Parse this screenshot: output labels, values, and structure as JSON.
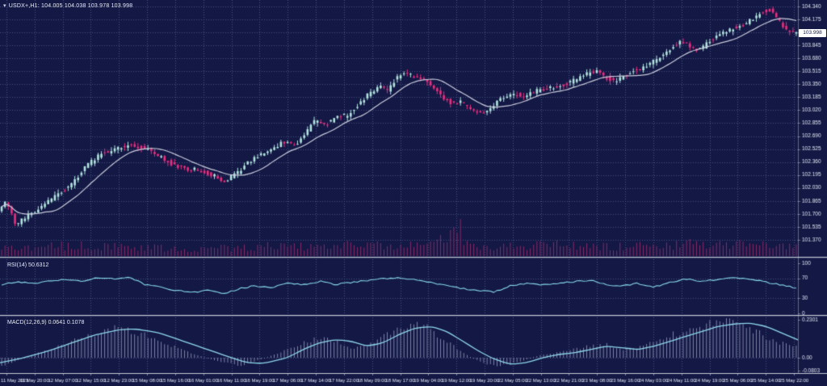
{
  "window": {
    "title": "USDX+,H1: 104.005 104.038 103.978 103.998"
  },
  "icons": {
    "collapse_arrow": "▾"
  },
  "colors": {
    "background": "#131845",
    "grid": "#4f5b8c",
    "bull_candle": "#b2e4de",
    "bear_candle": "#ea2e7e",
    "moving_average": "#c9cad9",
    "volume": "#8c2a66",
    "rsi_line": "#86d7e9",
    "macd_line": "#8fd8ea",
    "macd_histogram": "#b9bedd",
    "axis_text": "#dfe3ee",
    "separator": "#c6cad6",
    "separator_shadow": "#3a4067",
    "tag_background": "#ffffff",
    "tag_text": "#131845"
  },
  "price_axis": {
    "labels": [
      "104.340",
      "104.175",
      "104.010",
      "103.845",
      "103.680",
      "103.515",
      "103.350",
      "103.185",
      "103.020",
      "102.855",
      "102.690",
      "102.525",
      "102.360",
      "102.195",
      "102.030",
      "101.865",
      "101.700",
      "101.535",
      "101.370"
    ],
    "current_price": "103.998"
  },
  "time_axis": {
    "labels": [
      "11 May 2023",
      "11 May 20:00",
      "12 May 07:00",
      "12 May 15:00",
      "12 May 23:00",
      "15 May 08:00",
      "15 May 16:00",
      "16 May 01:00",
      "16 May 11:00",
      "16 May 19:00",
      "17 May 06:00",
      "17 May 14:00",
      "17 May 22:00",
      "18 May 09:00",
      "18 May 17:00",
      "19 May 04:00",
      "19 May 12:00",
      "19 May 20:00",
      "22 May 05:00",
      "22 May 13:00",
      "22 May 21:00",
      "23 May 08:00",
      "23 May 16:00",
      "24 May 03:00",
      "24 May 11:00",
      "24 May 19:00",
      "25 May 06:00",
      "25 May 14:00",
      "25 May 22:00"
    ]
  },
  "panes": {
    "rsi": {
      "label": "RSI(14) 50.6312",
      "scale": [
        "100",
        "70",
        "30",
        "0"
      ]
    },
    "macd": {
      "label": "MACD(12,26,9) 0.0641 0.1078",
      "scale": [
        "0.2301",
        "0.00",
        "-0.0803"
      ]
    }
  },
  "chart_data": [
    {
      "type": "candlestick",
      "name": "USDX+ H1 price with moving average and tick volume",
      "ohlc_last": {
        "open": 104.005,
        "high": 104.038,
        "low": 103.978,
        "close": 103.998
      },
      "y_range": [
        101.37,
        104.34
      ],
      "grid": true,
      "candle_count": 240,
      "close_path": [
        [
          0,
          101.72
        ],
        [
          0.01,
          101.88
        ],
        [
          0.022,
          101.56
        ],
        [
          0.035,
          101.66
        ],
        [
          0.055,
          101.8
        ],
        [
          0.075,
          101.95
        ],
        [
          0.09,
          102.05
        ],
        [
          0.11,
          102.3
        ],
        [
          0.127,
          102.45
        ],
        [
          0.145,
          102.52
        ],
        [
          0.163,
          102.58
        ],
        [
          0.18,
          102.55
        ],
        [
          0.198,
          102.46
        ],
        [
          0.215,
          102.35
        ],
        [
          0.233,
          102.28
        ],
        [
          0.25,
          102.26
        ],
        [
          0.268,
          102.2
        ],
        [
          0.285,
          102.12
        ],
        [
          0.3,
          102.22
        ],
        [
          0.32,
          102.4
        ],
        [
          0.34,
          102.5
        ],
        [
          0.36,
          102.62
        ],
        [
          0.375,
          102.56
        ],
        [
          0.39,
          102.78
        ],
        [
          0.4,
          102.9
        ],
        [
          0.412,
          102.84
        ],
        [
          0.425,
          102.92
        ],
        [
          0.44,
          102.96
        ],
        [
          0.455,
          103.1
        ],
        [
          0.468,
          103.25
        ],
        [
          0.48,
          103.32
        ],
        [
          0.49,
          103.26
        ],
        [
          0.5,
          103.42
        ],
        [
          0.51,
          103.5
        ],
        [
          0.52,
          103.46
        ],
        [
          0.532,
          103.42
        ],
        [
          0.545,
          103.34
        ],
        [
          0.558,
          103.2
        ],
        [
          0.57,
          103.1
        ],
        [
          0.582,
          103.12
        ],
        [
          0.595,
          103.04
        ],
        [
          0.608,
          102.98
        ],
        [
          0.62,
          103.06
        ],
        [
          0.635,
          103.18
        ],
        [
          0.65,
          103.22
        ],
        [
          0.665,
          103.2
        ],
        [
          0.68,
          103.28
        ],
        [
          0.695,
          103.3
        ],
        [
          0.71,
          103.33
        ],
        [
          0.725,
          103.4
        ],
        [
          0.74,
          103.48
        ],
        [
          0.752,
          103.52
        ],
        [
          0.762,
          103.45
        ],
        [
          0.775,
          103.38
        ],
        [
          0.788,
          103.46
        ],
        [
          0.8,
          103.52
        ],
        [
          0.815,
          103.58
        ],
        [
          0.83,
          103.68
        ],
        [
          0.845,
          103.8
        ],
        [
          0.858,
          103.88
        ],
        [
          0.87,
          103.84
        ],
        [
          0.882,
          103.78
        ],
        [
          0.893,
          103.88
        ],
        [
          0.905,
          103.96
        ],
        [
          0.916,
          104.02
        ],
        [
          0.928,
          104.08
        ],
        [
          0.94,
          104.12
        ],
        [
          0.952,
          104.2
        ],
        [
          0.962,
          104.28
        ],
        [
          0.972,
          104.3
        ],
        [
          0.982,
          104.16
        ],
        [
          0.992,
          104.03
        ],
        [
          1,
          103.998
        ]
      ],
      "volume_profile": [
        [
          0,
          0.22
        ],
        [
          0.05,
          0.3
        ],
        [
          0.1,
          0.33
        ],
        [
          0.15,
          0.28
        ],
        [
          0.2,
          0.26
        ],
        [
          0.25,
          0.2
        ],
        [
          0.3,
          0.28
        ],
        [
          0.35,
          0.33
        ],
        [
          0.4,
          0.3
        ],
        [
          0.45,
          0.34
        ],
        [
          0.5,
          0.3
        ],
        [
          0.55,
          0.4
        ],
        [
          0.572,
          1.1
        ],
        [
          0.585,
          0.4
        ],
        [
          0.62,
          0.28
        ],
        [
          0.65,
          0.3
        ],
        [
          0.7,
          0.34
        ],
        [
          0.75,
          0.3
        ],
        [
          0.8,
          0.3
        ],
        [
          0.85,
          0.36
        ],
        [
          0.9,
          0.4
        ],
        [
          0.95,
          0.34
        ],
        [
          1,
          0.28
        ]
      ]
    },
    {
      "type": "line",
      "name": "RSI(14)",
      "last_value": 50.6312,
      "y_range": [
        0,
        100
      ],
      "levels": [
        70,
        30
      ],
      "points": [
        [
          0,
          58
        ],
        [
          0.02,
          62
        ],
        [
          0.04,
          60
        ],
        [
          0.06,
          65
        ],
        [
          0.08,
          67
        ],
        [
          0.1,
          64
        ],
        [
          0.12,
          71
        ],
        [
          0.14,
          69
        ],
        [
          0.16,
          72
        ],
        [
          0.18,
          58
        ],
        [
          0.2,
          52
        ],
        [
          0.22,
          46
        ],
        [
          0.24,
          42
        ],
        [
          0.26,
          46
        ],
        [
          0.28,
          39
        ],
        [
          0.3,
          50
        ],
        [
          0.32,
          55
        ],
        [
          0.34,
          52
        ],
        [
          0.36,
          60
        ],
        [
          0.38,
          57
        ],
        [
          0.4,
          64
        ],
        [
          0.42,
          58
        ],
        [
          0.44,
          61
        ],
        [
          0.46,
          66
        ],
        [
          0.48,
          69
        ],
        [
          0.5,
          72
        ],
        [
          0.52,
          67
        ],
        [
          0.54,
          62
        ],
        [
          0.56,
          55
        ],
        [
          0.58,
          49
        ],
        [
          0.6,
          46
        ],
        [
          0.62,
          43
        ],
        [
          0.64,
          55
        ],
        [
          0.66,
          60
        ],
        [
          0.68,
          57
        ],
        [
          0.7,
          60
        ],
        [
          0.72,
          63
        ],
        [
          0.74,
          66
        ],
        [
          0.76,
          58
        ],
        [
          0.78,
          54
        ],
        [
          0.8,
          60
        ],
        [
          0.82,
          52
        ],
        [
          0.84,
          61
        ],
        [
          0.86,
          69
        ],
        [
          0.88,
          64
        ],
        [
          0.9,
          67
        ],
        [
          0.92,
          71
        ],
        [
          0.94,
          69
        ],
        [
          0.96,
          63
        ],
        [
          0.98,
          57
        ],
        [
          1,
          50.6
        ]
      ]
    },
    {
      "type": "macd",
      "name": "MACD(12,26,9)",
      "values": {
        "macd": 0.0641,
        "signal": 0.1078
      },
      "y_range": [
        -0.0803,
        0.2301
      ],
      "signal_points": [
        [
          0,
          -0.03
        ],
        [
          0.03,
          0.0
        ],
        [
          0.06,
          0.04
        ],
        [
          0.09,
          0.09
        ],
        [
          0.12,
          0.14
        ],
        [
          0.15,
          0.17
        ],
        [
          0.17,
          0.175
        ],
        [
          0.2,
          0.15
        ],
        [
          0.23,
          0.1
        ],
        [
          0.26,
          0.05
        ],
        [
          0.29,
          0.0
        ],
        [
          0.31,
          -0.03
        ],
        [
          0.33,
          -0.035
        ],
        [
          0.36,
          0.0
        ],
        [
          0.38,
          0.05
        ],
        [
          0.4,
          0.09
        ],
        [
          0.42,
          0.11
        ],
        [
          0.44,
          0.1
        ],
        [
          0.46,
          0.07
        ],
        [
          0.48,
          0.09
        ],
        [
          0.5,
          0.14
        ],
        [
          0.52,
          0.18
        ],
        [
          0.54,
          0.19
        ],
        [
          0.56,
          0.16
        ],
        [
          0.58,
          0.1
        ],
        [
          0.6,
          0.04
        ],
        [
          0.62,
          -0.01
        ],
        [
          0.64,
          -0.04
        ],
        [
          0.66,
          -0.03
        ],
        [
          0.68,
          0.0
        ],
        [
          0.7,
          0.02
        ],
        [
          0.72,
          0.03
        ],
        [
          0.74,
          0.05
        ],
        [
          0.76,
          0.07
        ],
        [
          0.78,
          0.06
        ],
        [
          0.8,
          0.05
        ],
        [
          0.82,
          0.07
        ],
        [
          0.84,
          0.1
        ],
        [
          0.86,
          0.13
        ],
        [
          0.88,
          0.16
        ],
        [
          0.9,
          0.19
        ],
        [
          0.92,
          0.205
        ],
        [
          0.94,
          0.21
        ],
        [
          0.96,
          0.19
        ],
        [
          0.98,
          0.15
        ],
        [
          1,
          0.108
        ]
      ],
      "histogram_points": [
        [
          0,
          -0.05
        ],
        [
          0.04,
          0.02
        ],
        [
          0.08,
          0.08
        ],
        [
          0.11,
          0.14
        ],
        [
          0.14,
          0.18
        ],
        [
          0.16,
          0.17
        ],
        [
          0.19,
          0.12
        ],
        [
          0.22,
          0.06
        ],
        [
          0.25,
          0.01
        ],
        [
          0.28,
          -0.03
        ],
        [
          0.3,
          -0.05
        ],
        [
          0.32,
          -0.02
        ],
        [
          0.35,
          0.03
        ],
        [
          0.38,
          0.09
        ],
        [
          0.4,
          0.12
        ],
        [
          0.42,
          0.1
        ],
        [
          0.44,
          0.06
        ],
        [
          0.46,
          0.08
        ],
        [
          0.48,
          0.13
        ],
        [
          0.5,
          0.18
        ],
        [
          0.52,
          0.21
        ],
        [
          0.54,
          0.17
        ],
        [
          0.56,
          0.1
        ],
        [
          0.58,
          0.03
        ],
        [
          0.6,
          -0.02
        ],
        [
          0.62,
          -0.05
        ],
        [
          0.64,
          -0.04
        ],
        [
          0.66,
          -0.01
        ],
        [
          0.68,
          0.02
        ],
        [
          0.7,
          0.03
        ],
        [
          0.72,
          0.05
        ],
        [
          0.74,
          0.07
        ],
        [
          0.76,
          0.08
        ],
        [
          0.78,
          0.05
        ],
        [
          0.8,
          0.06
        ],
        [
          0.82,
          0.09
        ],
        [
          0.84,
          0.13
        ],
        [
          0.86,
          0.17
        ],
        [
          0.88,
          0.2
        ],
        [
          0.9,
          0.215
        ],
        [
          0.92,
          0.21
        ],
        [
          0.94,
          0.18
        ],
        [
          0.96,
          0.13
        ],
        [
          0.98,
          0.09
        ],
        [
          1,
          0.064
        ]
      ]
    }
  ]
}
